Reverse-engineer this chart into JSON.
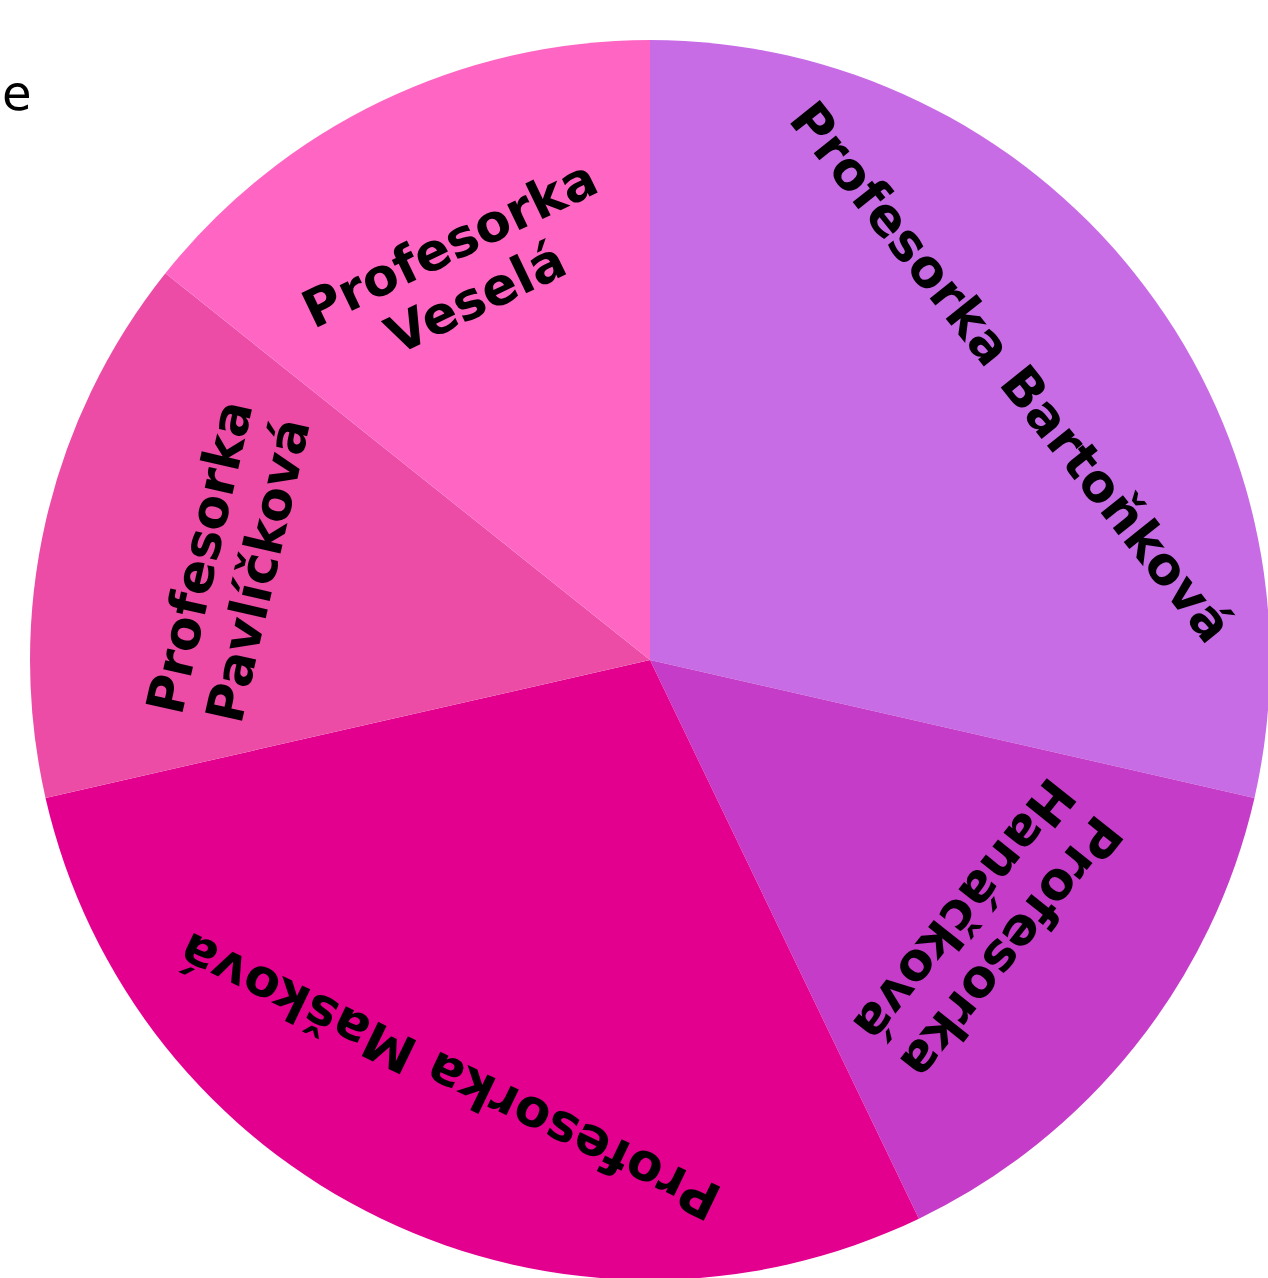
{
  "chart_data": {
    "type": "pie",
    "categories": [
      "Profesorka Bartoňková",
      "Profesorka Hanáčková",
      "Profesorka Mašková",
      "Profesorka Pavlíčková",
      "Profesorka Veselá"
    ],
    "values": [
      28.57,
      14.29,
      28.57,
      14.29,
      14.28
    ],
    "colors": [
      "#c86ce6",
      "#c53cc8",
      "#e4008f",
      "#ed4ca6",
      "#ff66c4"
    ],
    "annotations": [
      "e"
    ]
  }
}
